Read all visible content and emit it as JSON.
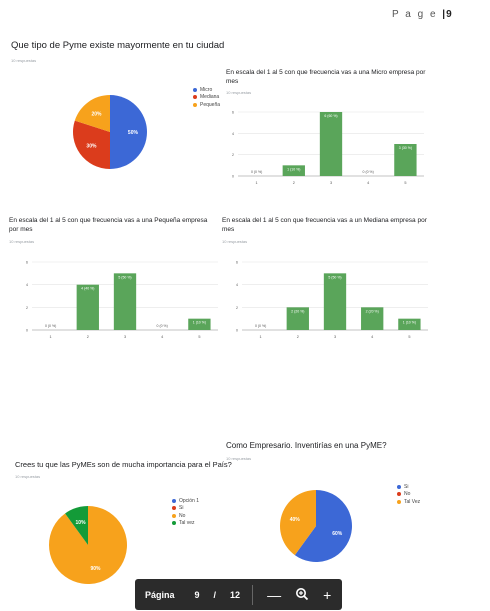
{
  "page_header": {
    "label": "P a g e",
    "number": "9"
  },
  "colors": {
    "blue": "#3c68d6",
    "red": "#db3c1c",
    "orange": "#f7a21c",
    "green": "#139b38",
    "bar": "#5aa55a"
  },
  "charts": {
    "pyme_type": {
      "title": "Que tipo de Pyme existe mayormente en tu ciudad",
      "responses": "10 respuestas",
      "legend": [
        "Micro",
        "Mediana",
        "Pequeña"
      ],
      "slice_labels": [
        "50%",
        "30%",
        "20%"
      ]
    },
    "micro": {
      "title": "En escala del 1 al 5 con que frecuencia vas a una Micro empresa por mes",
      "responses": "10 respuestas",
      "y_ticks": [
        "0",
        "2",
        "4",
        "6"
      ],
      "x_ticks": [
        "1",
        "2",
        "3",
        "4",
        "5"
      ],
      "data_labels": [
        "0 (0 %)",
        "1 (10 %)",
        "6 (60 %)",
        "0 (0 %)",
        "3 (30 %)"
      ]
    },
    "pequena": {
      "title": "En escala del 1 al 5 con que frecuencia vas a una Pequeña empresa por mes",
      "responses": "10 respuestas",
      "y_ticks": [
        "0",
        "2",
        "4",
        "6"
      ],
      "x_ticks": [
        "1",
        "2",
        "3",
        "4",
        "5"
      ],
      "data_labels": [
        "0 (0 %)",
        "4 (40 %)",
        "5 (50 %)",
        "0 (0 %)",
        "1 (10 %)"
      ]
    },
    "mediana": {
      "title": "En escala del 1 al 5 con que frecuencia vas a un Mediana empresa por mes",
      "responses": "10 respuestas",
      "y_ticks": [
        "0",
        "2",
        "4",
        "6"
      ],
      "x_ticks": [
        "1",
        "2",
        "3",
        "4",
        "5"
      ],
      "data_labels": [
        "0 (0 %)",
        "2 (20 %)",
        "5 (50 %)",
        "2 (20 %)",
        "1 (10 %)"
      ]
    },
    "importancia": {
      "title": "Crees tu que las PyMEs son de mucha importancia para el País?",
      "responses": "10 respuestas",
      "legend": [
        "Opción 1",
        "Si",
        "No",
        "Tal vez"
      ],
      "slice_labels": [
        "90%",
        "10%"
      ]
    },
    "empresario": {
      "title": "Como Empresario. Inventirías en una PyME?",
      "responses": "10 respuestas",
      "legend": [
        "Si",
        "No",
        "Tal Vez"
      ],
      "slice_labels": [
        "60%",
        "40%"
      ]
    }
  },
  "chart_data": [
    {
      "type": "pie",
      "title": "Que tipo de Pyme existe mayormente en tu ciudad",
      "categories": [
        "Micro",
        "Mediana",
        "Pequeña"
      ],
      "values": [
        50,
        30,
        20
      ],
      "colors": [
        "#3c68d6",
        "#db3c1c",
        "#f7a21c"
      ],
      "legend": "right"
    },
    {
      "type": "bar",
      "title": "En escala del 1 al 5 con que frecuencia vas a una Micro empresa por mes",
      "categories": [
        "1",
        "2",
        "3",
        "4",
        "5"
      ],
      "values": [
        0,
        1,
        6,
        0,
        3
      ],
      "ylim": [
        0,
        6
      ],
      "grid": true
    },
    {
      "type": "bar",
      "title": "En escala del 1 al 5 con que frecuencia vas a una Pequeña empresa por mes",
      "categories": [
        "1",
        "2",
        "3",
        "4",
        "5"
      ],
      "values": [
        0,
        4,
        5,
        0,
        1
      ],
      "ylim": [
        0,
        6
      ],
      "grid": true
    },
    {
      "type": "bar",
      "title": "En escala del 1 al 5 con que frecuencia vas a un Mediana empresa por mes",
      "categories": [
        "1",
        "2",
        "3",
        "4",
        "5"
      ],
      "values": [
        0,
        2,
        5,
        2,
        1
      ],
      "ylim": [
        0,
        6
      ],
      "grid": true
    },
    {
      "type": "pie",
      "title": "Crees tu que las PyMEs son de mucha importancia para el País?",
      "categories": [
        "Opción 1",
        "Si",
        "No",
        "Tal vez"
      ],
      "values": [
        0,
        0,
        90,
        10
      ],
      "colors": [
        "#3c68d6",
        "#db3c1c",
        "#f7a21c",
        "#139b38"
      ],
      "legend": "right"
    },
    {
      "type": "pie",
      "title": "Como Empresario. Inventirías en una PyME?",
      "categories": [
        "Si",
        "No",
        "Tal Vez"
      ],
      "values": [
        60,
        0,
        40
      ],
      "colors": [
        "#3c68d6",
        "#db3c1c",
        "#f7a21c"
      ],
      "legend": "right"
    }
  ],
  "toolbar": {
    "label": "Página",
    "current": "9",
    "separator": "/",
    "total": "12",
    "zoom_out": "—",
    "zoom_in": "+"
  }
}
